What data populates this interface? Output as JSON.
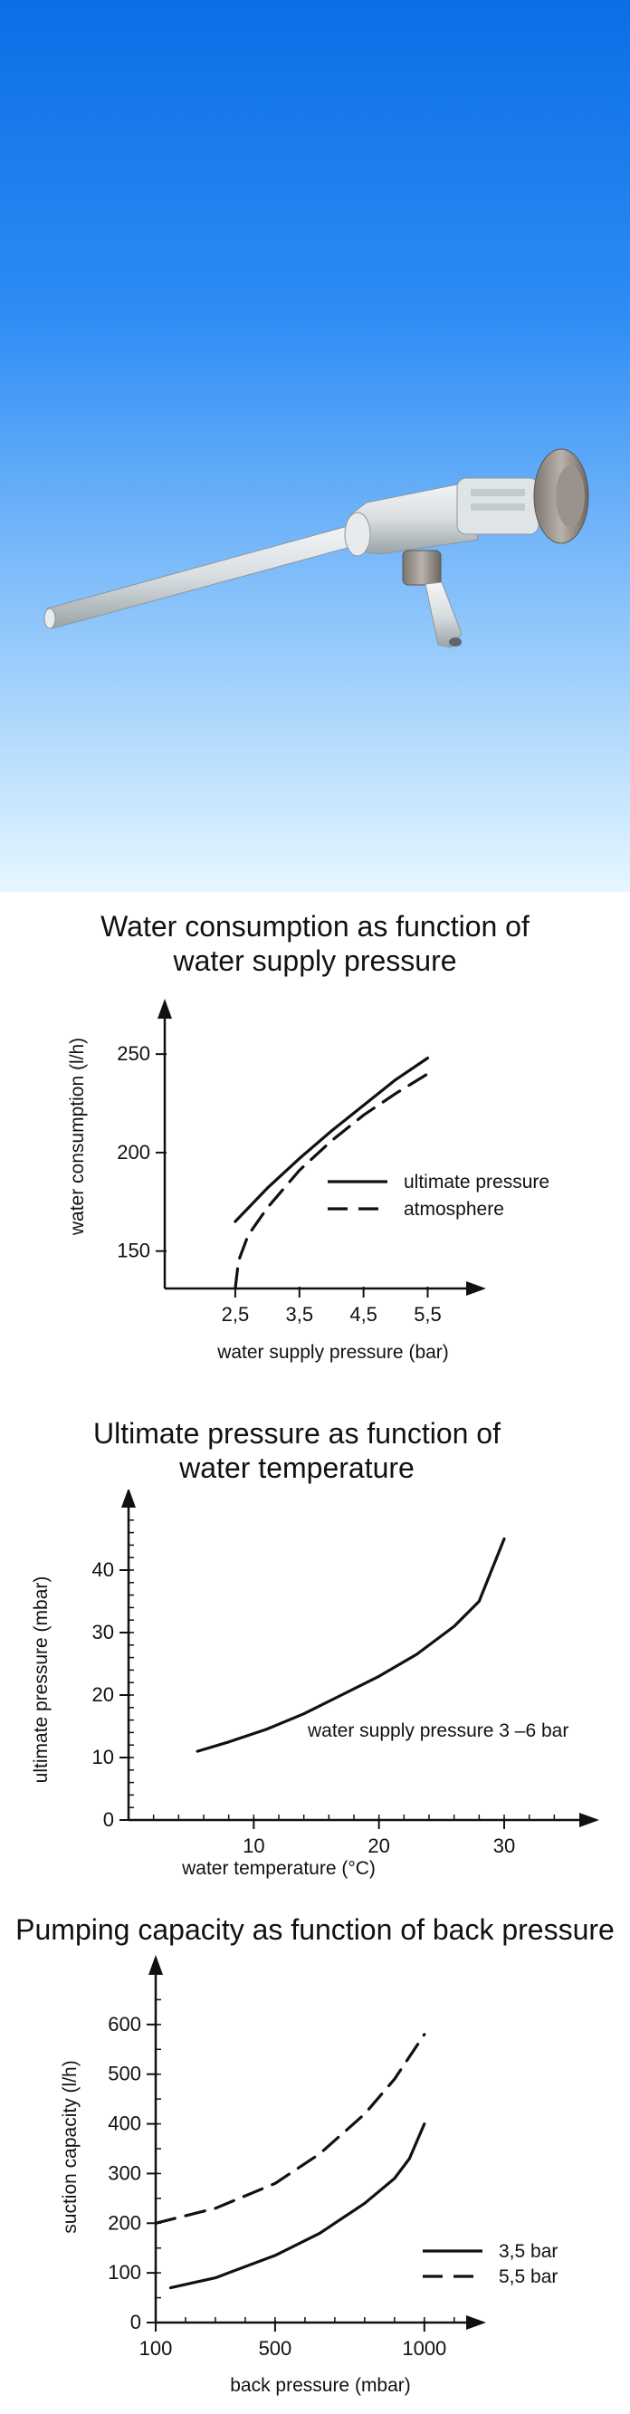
{
  "chart_data": [
    {
      "type": "line",
      "title_line1": "Water consumption as function of",
      "title_line2": "water supply pressure",
      "xlabel": "water supply pressure (bar)",
      "ylabel": "water consumption (l/h)",
      "x_ticks": [
        2.5,
        3.5,
        4.5,
        5.5
      ],
      "x_tick_labels": [
        "2,5",
        "3,5",
        "4,5",
        "5,5"
      ],
      "y_ticks": [
        150,
        200,
        250
      ],
      "y_tick_labels": [
        "150",
        "200",
        "250"
      ],
      "xlim": [
        1.4,
        6.1
      ],
      "ylim": [
        131,
        268
      ],
      "legend_position": "right",
      "series": [
        {
          "name": "ultimate pressure",
          "style": "solid",
          "x": [
            2.5,
            3.0,
            3.5,
            4.0,
            4.5,
            5.0,
            5.5
          ],
          "y": [
            165,
            182,
            197,
            211,
            224,
            237,
            248
          ]
        },
        {
          "name": "atmosphere",
          "style": "dashed",
          "x": [
            2.5,
            2.55,
            2.7,
            3.0,
            3.5,
            4.0,
            4.5,
            5.0,
            5.5
          ],
          "y": [
            131,
            145,
            158,
            172,
            191,
            206,
            219,
            230,
            240
          ]
        }
      ]
    },
    {
      "type": "line",
      "title_line1": "Ultimate pressure as function of",
      "title_line2": "water temperature",
      "xlabel": "water temperature (°C)",
      "ylabel": "ultimate pressure (mbar)",
      "x_ticks": [
        10,
        20,
        30
      ],
      "x_tick_labels": [
        "10",
        "20",
        "30"
      ],
      "x_minor_step": 2,
      "y_ticks": [
        0,
        10,
        20,
        30,
        40
      ],
      "y_tick_labels": [
        "0",
        "10",
        "20",
        "30",
        "40"
      ],
      "y_minor_step": 2,
      "xlim": [
        0,
        36
      ],
      "ylim": [
        0,
        50
      ],
      "annotation": "water supply pressure 3 –6 bar",
      "series": [
        {
          "style": "solid",
          "x": [
            5.5,
            8,
            11,
            14,
            17,
            20,
            23,
            26,
            28,
            30
          ],
          "y": [
            11,
            12.5,
            14.5,
            17,
            20,
            23,
            26.5,
            31,
            35,
            45
          ]
        }
      ]
    },
    {
      "type": "line",
      "title_line1": "Pumping capacity as function of back pressure",
      "title_line2": "",
      "xlabel": "back pressure (mbar)",
      "ylabel": "suction capacity (l/h)",
      "x_ticks": [
        100,
        500,
        1000
      ],
      "x_tick_labels": [
        "100",
        "500",
        "1000"
      ],
      "x_tick_pos": [
        0,
        2,
        4.5
      ],
      "x_minor_step": 0.5,
      "y_ticks": [
        0,
        100,
        200,
        300,
        400,
        500,
        600
      ],
      "y_tick_labels": [
        "0",
        "100",
        "200",
        "300",
        "400",
        "500",
        "600"
      ],
      "y_minor_step": 50,
      "xlim": [
        0,
        5.2
      ],
      "ylim": [
        0,
        700
      ],
      "legend_position": "bottom-right",
      "series": [
        {
          "name": "3,5 bar",
          "style": "solid",
          "x": [
            150,
            300,
            500,
            650,
            800,
            900,
            950,
            1000
          ],
          "y": [
            70,
            90,
            135,
            180,
            240,
            290,
            330,
            400
          ]
        },
        {
          "name": "5,5 bar",
          "style": "dashed",
          "x": [
            100,
            300,
            500,
            650,
            800,
            900,
            1000
          ],
          "y": [
            200,
            230,
            280,
            340,
            420,
            490,
            580
          ]
        }
      ]
    }
  ]
}
